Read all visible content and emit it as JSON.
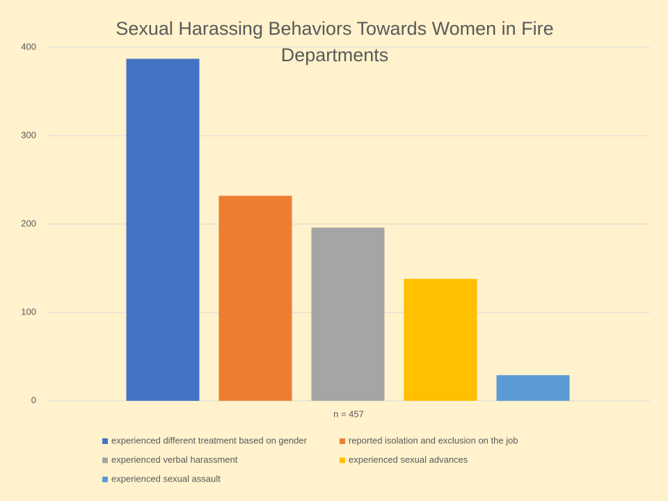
{
  "chart_data": {
    "type": "bar",
    "title": "Sexual Harassing Behaviors Towards Women in Fire Departments",
    "categories": [
      "n = 457"
    ],
    "series": [
      {
        "name": "experienced different treatment based on gender",
        "color": "#4472c4",
        "values": [
          387
        ]
      },
      {
        "name": "reported isolation and exclusion on the job",
        "color": "#ed7d31",
        "values": [
          232
        ]
      },
      {
        "name": "experienced verbal harassment",
        "color": "#a5a5a5",
        "values": [
          196
        ]
      },
      {
        "name": "experienced sexual advances",
        "color": "#ffc000",
        "values": [
          138
        ]
      },
      {
        "name": "experienced sexual assault",
        "color": "#5b9bd5",
        "values": [
          29
        ]
      }
    ],
    "ylim": [
      0,
      400
    ],
    "yticks": [
      0,
      100,
      200,
      300,
      400
    ],
    "grid": true,
    "legend": "bottom"
  }
}
